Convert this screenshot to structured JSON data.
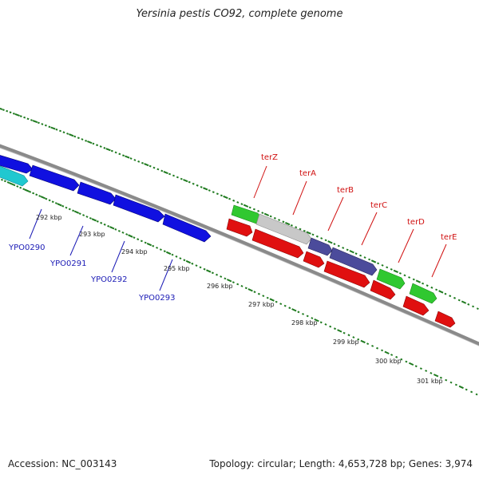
{
  "map": {
    "title": "Yersinia pestis CO92, complete genome",
    "accession": "Accession: NC_003143",
    "summary": "Topology: circular; Length: 4,653,728 bp; Genes: 3,974"
  },
  "colors": {
    "backbone": "#8a8a8a",
    "tick": "#1e7a1e",
    "gene_blue": "#1010e0",
    "gene_cyan": "#20c8d0",
    "gene_green": "#30c830",
    "gene_gray": "#c0c0c0",
    "gene_navy": "#404090",
    "gene_red": "#e01010",
    "label_blue": "#1a1ab5",
    "label_red": "#d01010"
  },
  "kbp_labels": [
    "292 kbp",
    "293 kbp",
    "294 kbp",
    "295 kbp",
    "296 kbp",
    "297 kbp",
    "298 kbp",
    "299 kbp",
    "300 kbp",
    "301 kbp"
  ],
  "blue_gene_labels": [
    "YPO0290",
    "YPO0291",
    "YPO0292",
    "YPO0293"
  ],
  "ter_labels": [
    "terZ",
    "terA",
    "terB",
    "terC",
    "terD",
    "terE"
  ]
}
